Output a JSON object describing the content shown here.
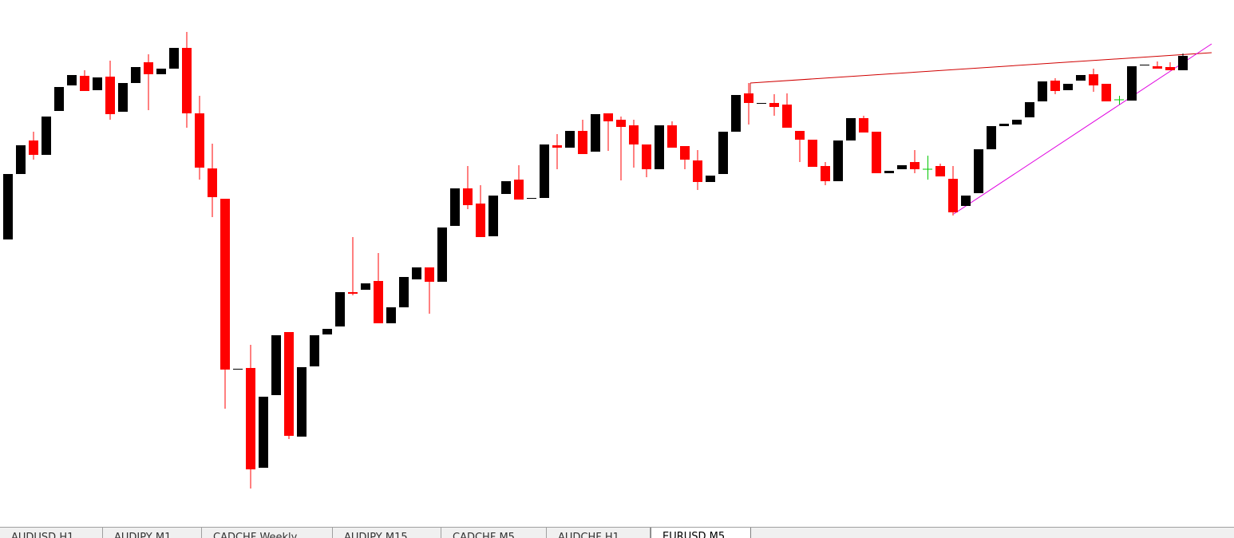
{
  "chart_data": {
    "type": "candlestick",
    "ylim": [
      40,
      700
    ],
    "up_color": "#000000",
    "down_color": "#ff0000",
    "doji_color": "#00c800",
    "open": [
      400,
      482,
      524,
      506,
      561,
      593,
      605,
      587,
      604,
      560,
      596,
      622,
      607,
      614,
      640,
      558,
      489,
      451,
      237,
      239,
      114,
      205,
      284,
      153,
      241,
      281,
      291,
      334,
      337,
      348,
      295,
      315,
      350,
      365,
      347,
      417,
      464,
      445,
      404,
      457,
      475,
      451,
      452,
      518,
      515,
      536,
      510,
      558,
      550,
      543,
      519,
      488,
      543,
      517,
      499,
      472,
      482,
      535,
      583,
      570,
      571,
      569,
      536,
      525,
      492,
      473,
      524,
      552,
      535,
      483,
      488,
      497,
      488,
      492,
      476,
      442,
      458,
      513,
      542,
      544,
      553,
      573,
      599,
      587,
      599,
      607,
      595,
      575,
      574,
      618,
      617,
      616,
      612
    ],
    "high": [
      482,
      518,
      535,
      554,
      591,
      606,
      612,
      603,
      624,
      596,
      616,
      632,
      614,
      640,
      660,
      580,
      520,
      451,
      238,
      268,
      203,
      280,
      284,
      240,
      280,
      288,
      334,
      403,
      345,
      383,
      315,
      353,
      365,
      365,
      415,
      464,
      492,
      468,
      455,
      473,
      493,
      452,
      519,
      532,
      536,
      550,
      557,
      558,
      554,
      550,
      519,
      543,
      548,
      517,
      512,
      480,
      535,
      581,
      596,
      571,
      582,
      583,
      536,
      525,
      497,
      524,
      552,
      555,
      535,
      486,
      493,
      512,
      505,
      495,
      492,
      455,
      513,
      542,
      545,
      550,
      572,
      598,
      602,
      595,
      606,
      614,
      595,
      580,
      617,
      619,
      623,
      622,
      633
    ],
    "low": [
      400,
      482,
      500,
      506,
      561,
      593,
      586,
      587,
      550,
      560,
      596,
      562,
      607,
      614,
      540,
      475,
      428,
      188,
      237,
      88,
      114,
      205,
      150,
      153,
      241,
      281,
      291,
      330,
      337,
      295,
      295,
      315,
      350,
      307,
      347,
      417,
      438,
      403,
      404,
      457,
      450,
      451,
      452,
      488,
      515,
      507,
      510,
      511,
      474,
      490,
      478,
      488,
      515,
      488,
      462,
      472,
      482,
      535,
      544,
      570,
      555,
      540,
      497,
      491,
      468,
      473,
      524,
      534,
      483,
      483,
      488,
      483,
      475,
      479,
      430,
      442,
      458,
      513,
      542,
      544,
      553,
      573,
      582,
      587,
      599,
      585,
      573,
      569,
      574,
      618,
      614,
      612,
      612
    ],
    "close": [
      482,
      518,
      506,
      554,
      591,
      606,
      586,
      603,
      557,
      596,
      616,
      607,
      614,
      640,
      558,
      490,
      453,
      237,
      238,
      112,
      203,
      280,
      154,
      240,
      280,
      288,
      334,
      332,
      345,
      295,
      315,
      353,
      365,
      347,
      415,
      464,
      443,
      403,
      455,
      473,
      450,
      452,
      519,
      515,
      536,
      507,
      557,
      548,
      541,
      519,
      488,
      543,
      515,
      500,
      472,
      480,
      535,
      581,
      571,
      571,
      566,
      540,
      525,
      491,
      473,
      524,
      552,
      534,
      483,
      486,
      493,
      488,
      488,
      479,
      434,
      455,
      513,
      542,
      545,
      550,
      572,
      598,
      586,
      595,
      606,
      593,
      573,
      575,
      617,
      619,
      614,
      612,
      630
    ]
  },
  "tabs": [
    "AUDUSD,H1",
    "AUDJPY,M1",
    "CADCHF,Weekly",
    "AUDJPY,M15",
    "CADCHF,M5",
    "AUDCHF,H1",
    "EURUSD,M5"
  ],
  "active_tab": 6
}
